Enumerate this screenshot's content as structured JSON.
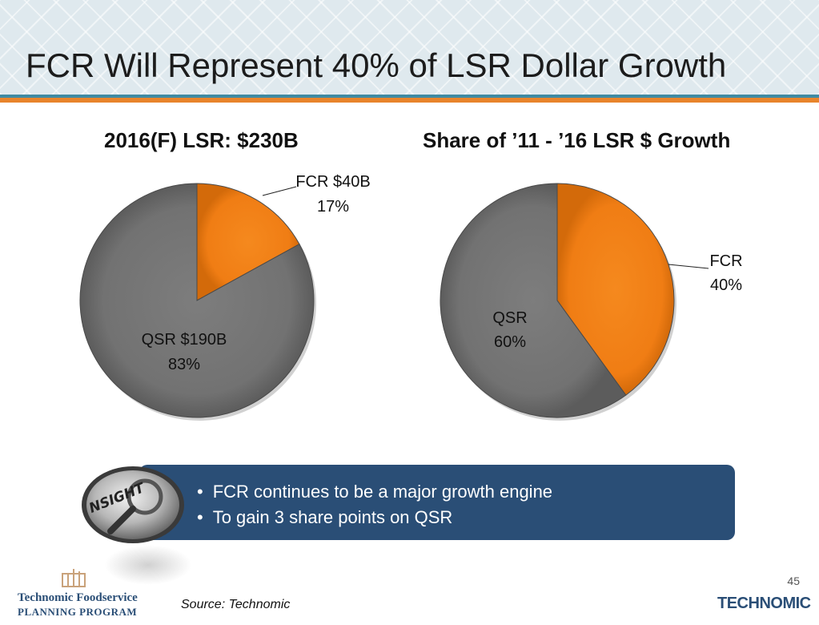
{
  "slide": {
    "title": "FCR Will Represent 40% of LSR Dollar Growth",
    "page_number": "45",
    "source": "Source: Technomic"
  },
  "insight": {
    "badge_text": "NSIGHT",
    "bullets": [
      "FCR continues to be a major growth engine",
      "To gain 3 share points on QSR"
    ]
  },
  "logos": {
    "left_line1": "Technomic Foodservice",
    "left_line2": "PLANNING PROGRAM",
    "right": "TECHNOMIC"
  },
  "colors": {
    "fcr": "#f07d14",
    "qsr": "#727272",
    "insight_bg": "#2a4e76"
  },
  "chart_data": [
    {
      "type": "pie",
      "title": "2016(F) LSR: $230B",
      "slices": [
        {
          "name": "FCR",
          "value": 17,
          "label_line1": "FCR $40B",
          "label_line2": "17%"
        },
        {
          "name": "QSR",
          "value": 83,
          "label_line1": "QSR $190B",
          "label_line2": "83%"
        }
      ]
    },
    {
      "type": "pie",
      "title": "Share of ’11 - ’16 LSR $ Growth",
      "slices": [
        {
          "name": "FCR",
          "value": 40,
          "label_line1": "FCR",
          "label_line2": "40%"
        },
        {
          "name": "QSR",
          "value": 60,
          "label_line1": "QSR",
          "label_line2": "60%"
        }
      ]
    }
  ]
}
